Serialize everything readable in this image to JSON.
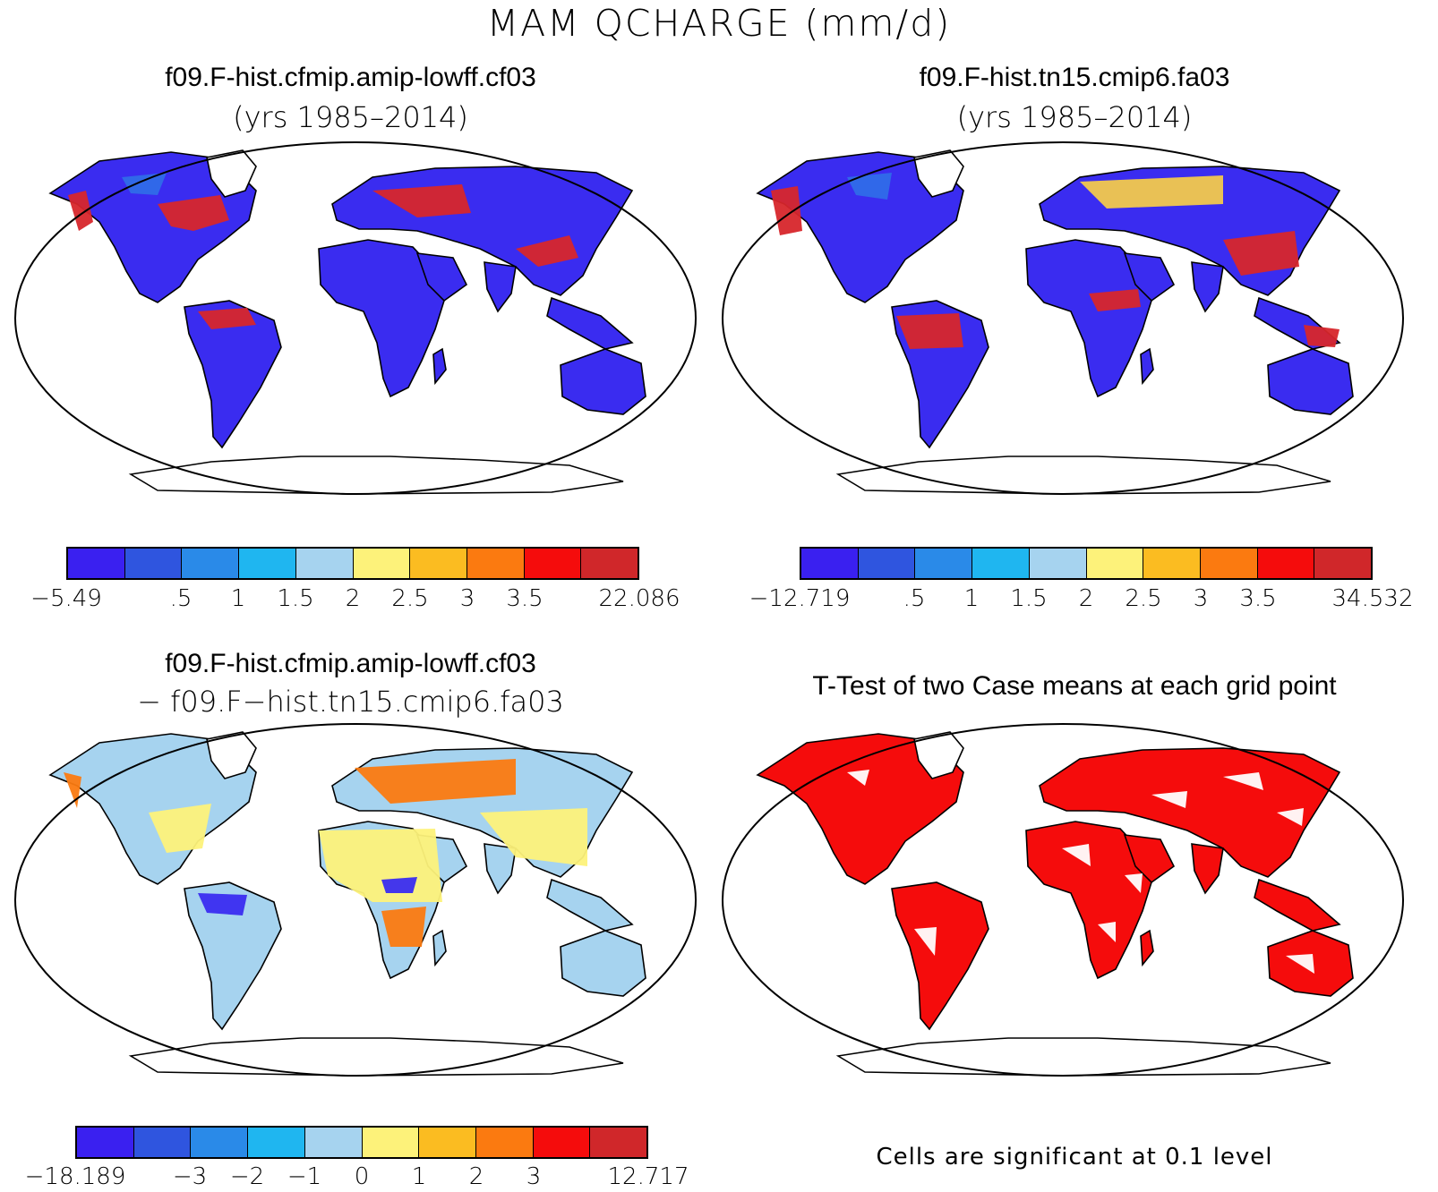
{
  "main_title": "MAM QCHARGE (mm/d)",
  "panels": [
    {
      "title": "f09.F-hist.cfmip.amip-lowff.cf03",
      "subtitle": "(yrs 1985–2014)",
      "land_colors": {
        "base": "#3a2cf0",
        "mid": "#2f6be8",
        "warm": "#d7262b",
        "hot": "#f2c94c"
      },
      "colorbar": {
        "colors": [
          "#3a20f0",
          "#2f55df",
          "#2a8ae8",
          "#1fb6f0",
          "#a6d3ef",
          "#fdf27a",
          "#fbbc21",
          "#fb7a10",
          "#f50c0c",
          "#d0272a"
        ],
        "labels": [
          "−5.49",
          ".5",
          "1",
          "1.5",
          "2",
          "2.5",
          "3",
          "3.5",
          "22.086"
        ]
      }
    },
    {
      "title": "f09.F-hist.tn15.cmip6.fa03",
      "subtitle": "(yrs 1985–2014)",
      "land_colors": {
        "base": "#3a2cf0",
        "mid": "#2f6be8",
        "warm": "#d7262b",
        "hot": "#f2c94c"
      },
      "colorbar": {
        "colors": [
          "#3a20f0",
          "#2f55df",
          "#2a8ae8",
          "#1fb6f0",
          "#a6d3ef",
          "#fdf27a",
          "#fbbc21",
          "#fb7a10",
          "#f50c0c",
          "#d0272a"
        ],
        "labels": [
          "−12.719",
          ".5",
          "1",
          "1.5",
          "2",
          "2.5",
          "3",
          "3.5",
          "34.532"
        ]
      }
    },
    {
      "title": "f09.F-hist.cfmip.amip-lowff.cf03",
      "subtitle": "− f09.F−hist.tn15.cmip6.fa03",
      "land_colors": {
        "base": "#a6d3ef",
        "mid": "#fdf27a",
        "warm": "#fb7a10",
        "hot": "#3a2cf0"
      },
      "colorbar": {
        "colors": [
          "#3a20f0",
          "#2f55df",
          "#2a8ae8",
          "#1fb6f0",
          "#a6d3ef",
          "#fdf27a",
          "#fbbc21",
          "#fb7a10",
          "#f50c0c",
          "#d0272a"
        ],
        "labels": [
          "−18.189",
          "−3",
          "−2",
          "−1",
          "0",
          "1",
          "2",
          "3",
          "12.717"
        ]
      }
    },
    {
      "title": "T-Test of two Case means at each grid point",
      "land_colors": {
        "base": "#f50c0c",
        "mid": "#f50c0c",
        "warm": "#f50c0c",
        "hot": "#ffffff"
      },
      "footnote": "Cells are significant at 0.1 level"
    }
  ]
}
